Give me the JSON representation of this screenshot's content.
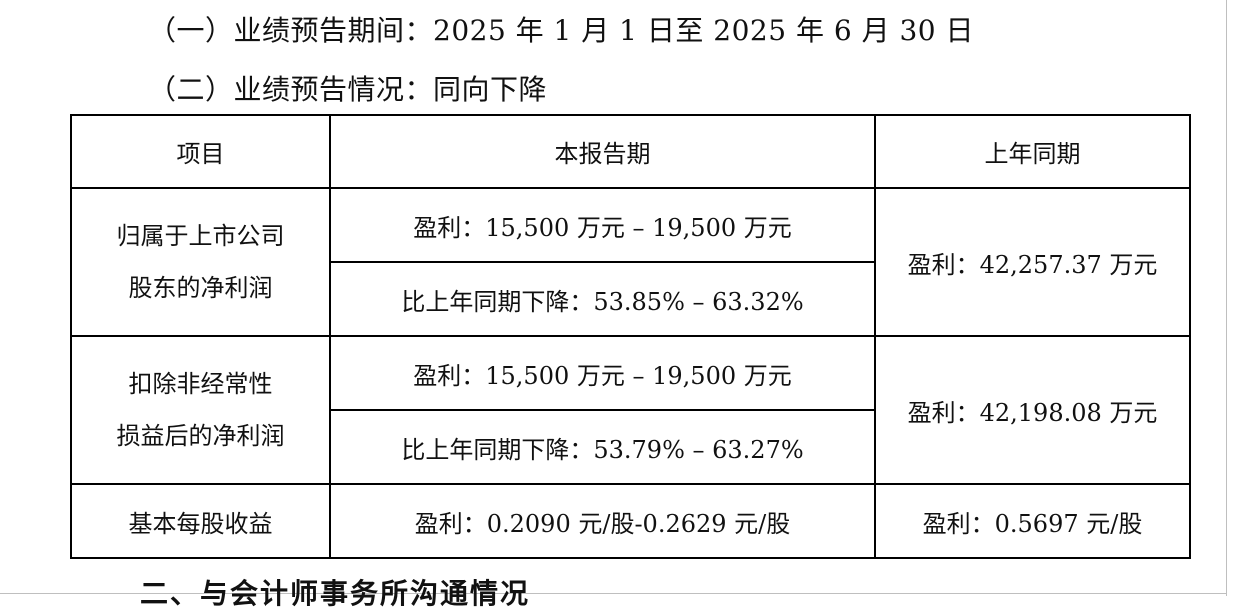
{
  "headings": {
    "period": "（一）业绩预告期间：2025 年 1 月 1 日至 2025 年 6 月 30 日",
    "situation": "（二）业绩预告情况：同向下降"
  },
  "table": {
    "columns": [
      "项目",
      "本报告期",
      "上年同期"
    ],
    "groups": [
      {
        "item_line1": "归属于上市公司",
        "item_line2": "股东的净利润",
        "current_profit": "盈利：15,500 万元 – 19,500 万元",
        "current_change": "比上年同期下降：53.85% – 63.32%",
        "prior": "盈利：42,257.37 万元"
      },
      {
        "item_line1": "扣除非经常性",
        "item_line2": "损益后的净利润",
        "current_profit": "盈利：15,500 万元 – 19,500 万元",
        "current_change": "比上年同期下降：53.79% – 63.27%",
        "prior": "盈利：42,198.08 万元"
      }
    ],
    "eps": {
      "item": "基本每股收益",
      "current": "盈利：0.2090 元/股-0.2629 元/股",
      "prior": "盈利：0.5697 元/股"
    }
  },
  "next_section_heading": "二、与会计师事务所沟通情况"
}
